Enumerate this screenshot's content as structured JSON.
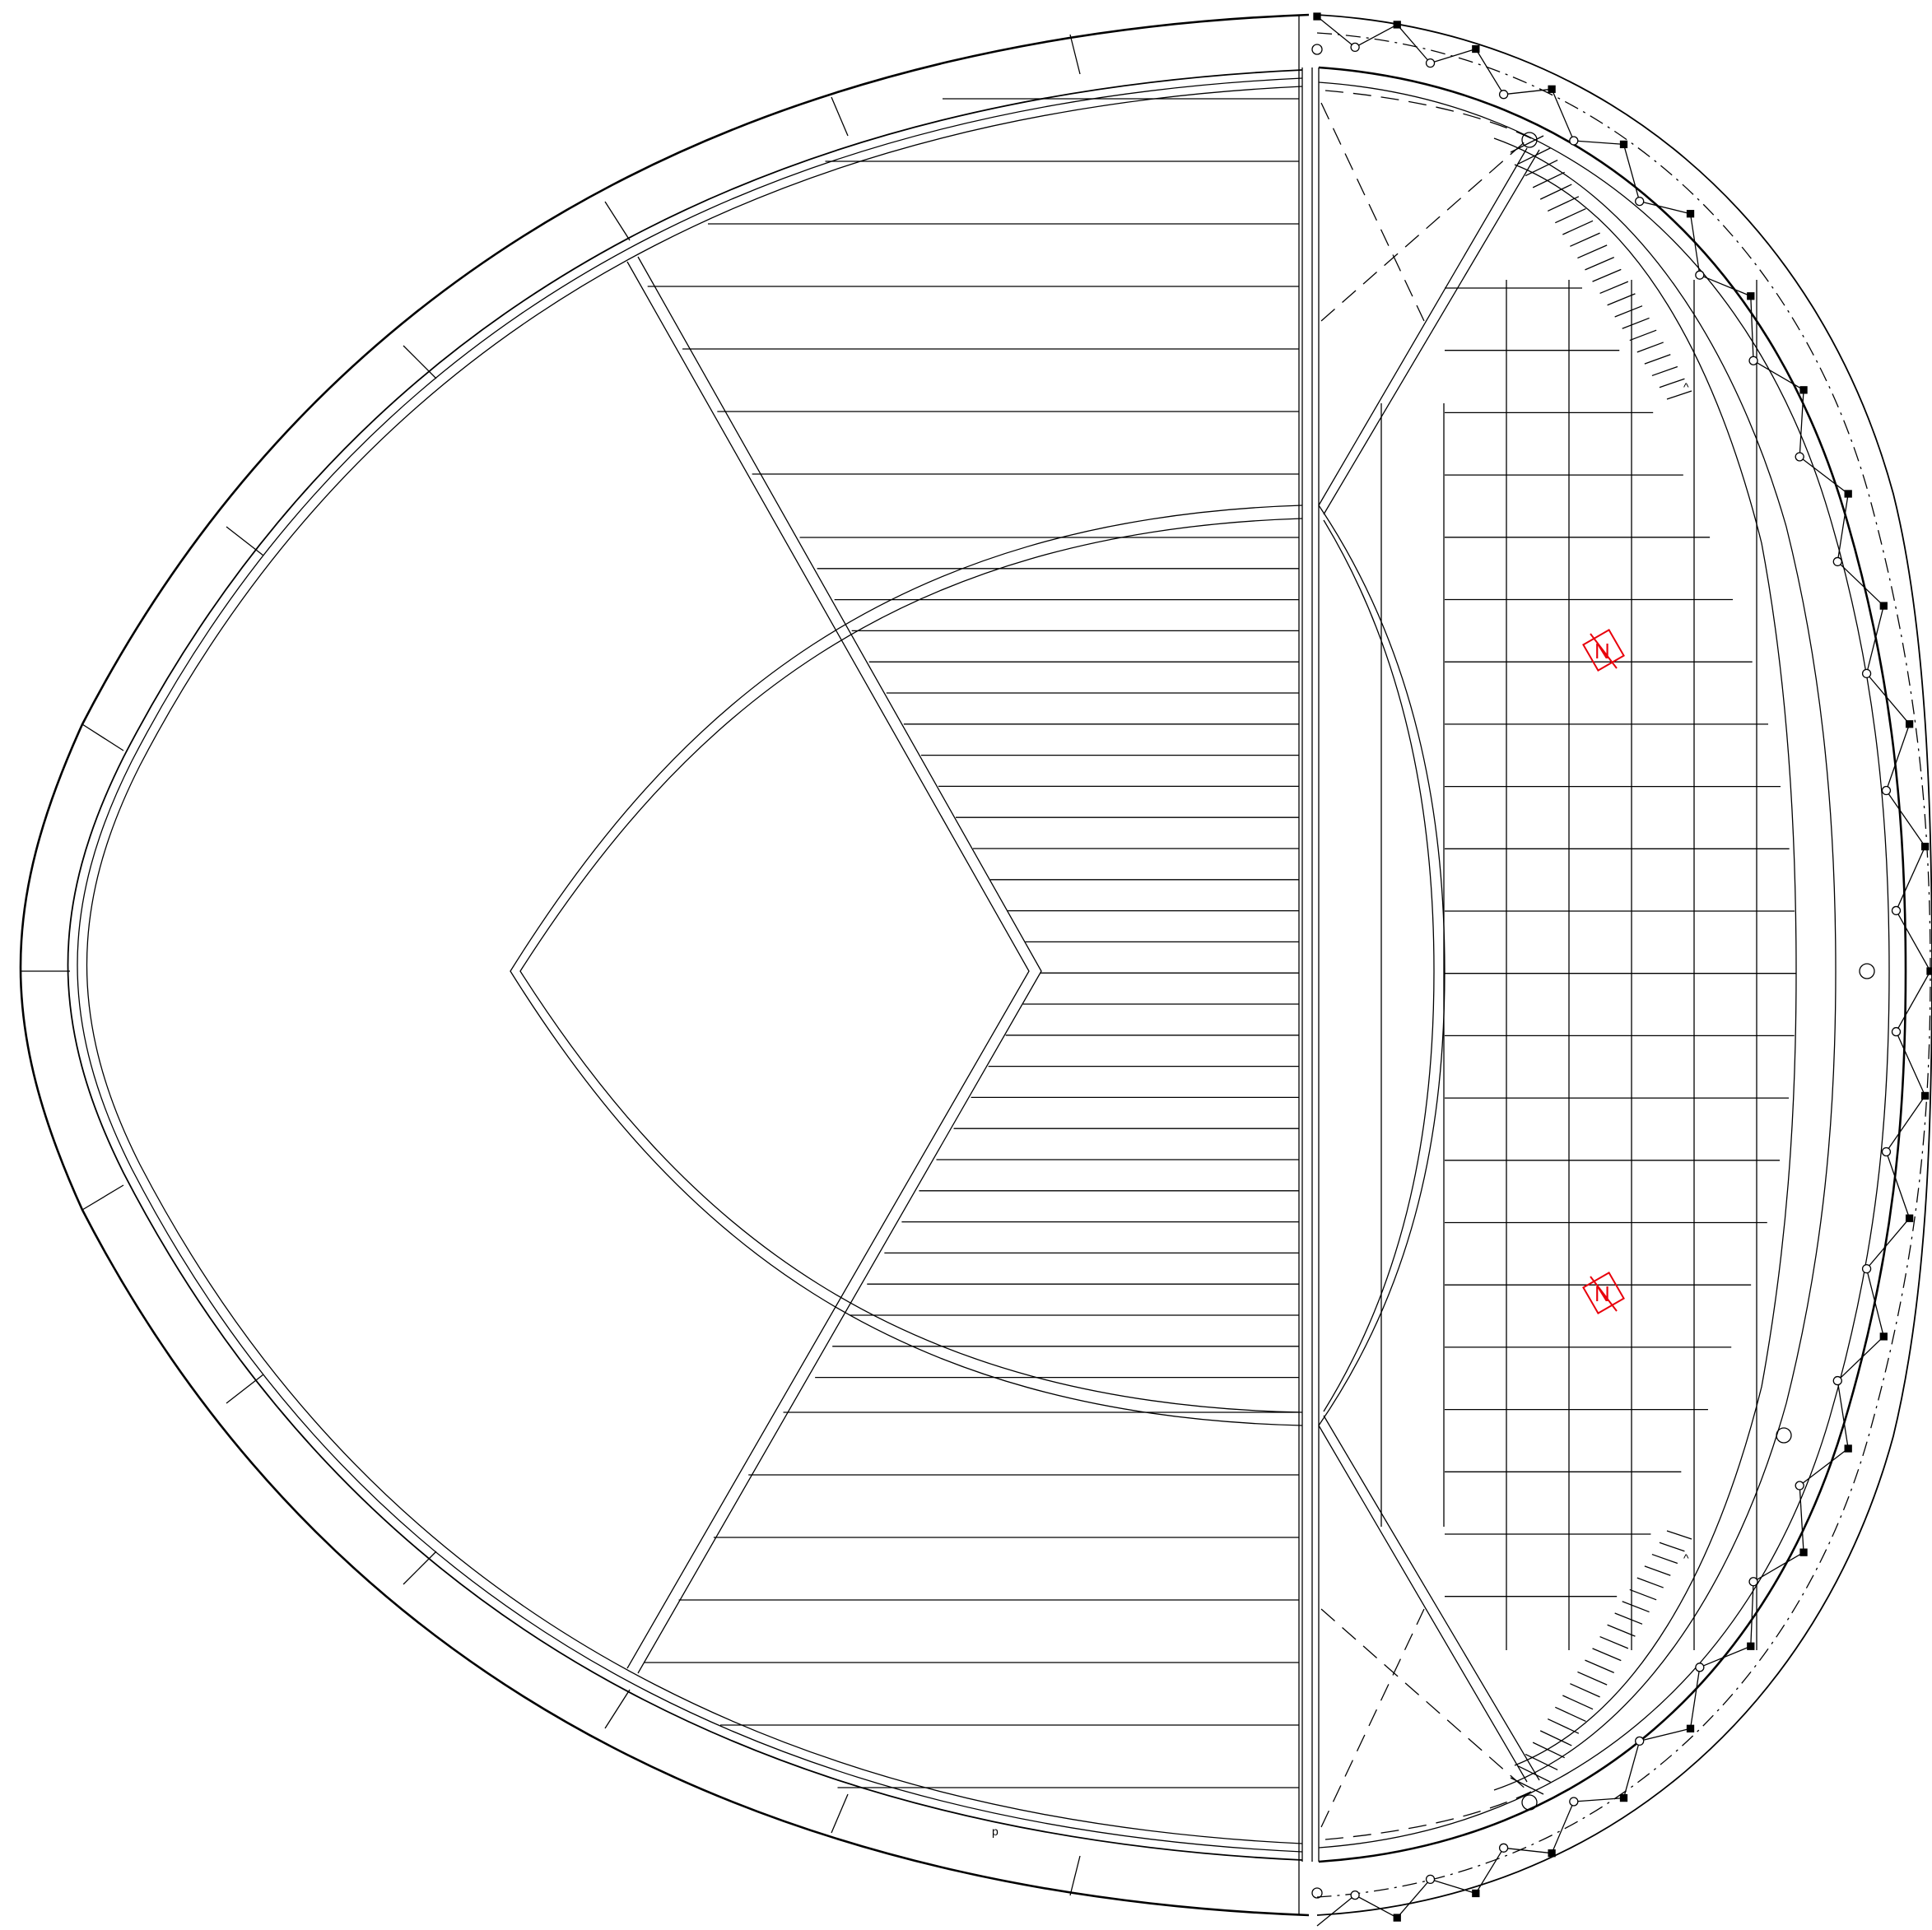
{
  "drawing": {
    "symbols": [
      {
        "name": "symbol-upper",
        "text": "N",
        "color": "#e8000b"
      },
      {
        "name": "symbol-lower",
        "text": "N",
        "color": "#e8000b"
      }
    ],
    "stair_marks": [
      {
        "name": "stair-arrow-upper",
        "text": "^"
      },
      {
        "name": "stair-arrow-lower",
        "text": "^"
      }
    ],
    "small_label": "p"
  },
  "colors": {
    "lines": "#000000",
    "symbols": "#e8000b",
    "background": "#ffffff"
  }
}
